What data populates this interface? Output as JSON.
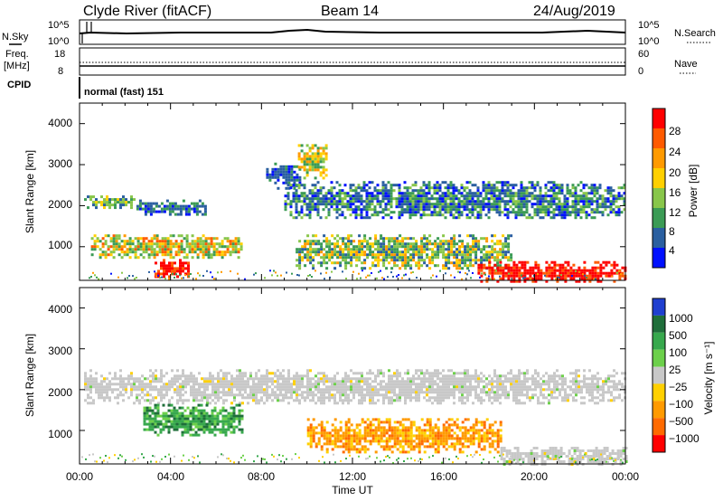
{
  "header": {
    "station": "Clyde River (fitACF)",
    "beam": "Beam 14",
    "date": "24/Aug/2019"
  },
  "noise_panel": {
    "left_label": "N.Sky",
    "right_label": "N.Search",
    "left_ticks": [
      "10^5",
      "10^0"
    ],
    "right_ticks": [
      "10^5",
      "10^0"
    ]
  },
  "freq_panel": {
    "left_label_1": "Freq.",
    "left_label_2": "[MHz]",
    "right_label": "Nave",
    "left_ticks": [
      "18",
      "8"
    ],
    "right_ticks": [
      "60",
      "0"
    ]
  },
  "cpid_panel": {
    "label": "CPID",
    "text": "normal (fast) 151"
  },
  "power_panel": {
    "ylabel": "Slant Range [km]",
    "yticks": [
      "4000",
      "3000",
      "2000",
      "1000"
    ],
    "colorbar_label": "Power [dB]",
    "colorbar_ticks": [
      "28",
      "24",
      "20",
      "16",
      "12",
      "8",
      "4"
    ]
  },
  "velocity_panel": {
    "ylabel": "Slant Range [km]",
    "yticks": [
      "4000",
      "3000",
      "2000",
      "1000"
    ],
    "colorbar_label": "Velocity [m s⁻¹]",
    "colorbar_ticks": [
      "1000",
      "500",
      "100",
      "25",
      "−25",
      "−100",
      "−500",
      "−1000"
    ]
  },
  "x_axis": {
    "label": "Time UT",
    "ticks": [
      "00:00",
      "04:00",
      "08:00",
      "12:00",
      "16:00",
      "20:00",
      "00:00"
    ]
  },
  "chart_data": {
    "type": "heatmap",
    "x_range_hours": [
      0,
      24
    ],
    "y_range_km": [
      180,
      4500
    ],
    "power_colors": [
      "#ff0000",
      "#ff5a00",
      "#ff9a00",
      "#ffd000",
      "#88c64a",
      "#3b9b55",
      "#2a5fa0",
      "#0010ff"
    ],
    "velocity_colors": [
      "#1f3fd0",
      "#1f6e3a",
      "#37a84d",
      "#6cd04a",
      "#c8c8c8",
      "#ffd000",
      "#ff9a00",
      "#ff6a00",
      "#ff0000"
    ],
    "power_echo_regions": [
      {
        "t0": 0.2,
        "t1": 2.4,
        "r0": 1950,
        "r1": 2250,
        "level": "12-16 dB"
      },
      {
        "t0": 2.5,
        "t1": 5.5,
        "r0": 1800,
        "r1": 2150,
        "level": "4-12 dB"
      },
      {
        "t0": 0.5,
        "t1": 7.1,
        "r0": 750,
        "r1": 1300,
        "level": "12-24 dB"
      },
      {
        "t0": 3.3,
        "t1": 4.8,
        "r0": 300,
        "r1": 700,
        "level": "20-28 dB"
      },
      {
        "t0": 8.2,
        "t1": 9.7,
        "r0": 2450,
        "r1": 3050,
        "level": "4-12 dB"
      },
      {
        "t0": 9.6,
        "t1": 10.8,
        "r0": 2700,
        "r1": 3500,
        "level": "12-20 dB"
      },
      {
        "t0": 9.0,
        "t1": 24.0,
        "r0": 1700,
        "r1": 2600,
        "level": "4-16 dB"
      },
      {
        "t0": 9.5,
        "t1": 19.0,
        "r0": 500,
        "r1": 1300,
        "level": "8-24 dB"
      },
      {
        "t0": 17.5,
        "t1": 24.0,
        "r0": 180,
        "r1": 650,
        "level": "20-28 dB"
      }
    ],
    "velocity_echo_regions": [
      {
        "t0": 0.2,
        "t1": 24.0,
        "r0": 1700,
        "r1": 2500,
        "level": "-25 to 25 m/s"
      },
      {
        "t0": 2.8,
        "t1": 7.1,
        "r0": 900,
        "r1": 1650,
        "level": "100 to 500 m/s"
      },
      {
        "t0": 10.0,
        "t1": 18.5,
        "r0": 500,
        "r1": 1300,
        "level": "-500 to -100 m/s"
      },
      {
        "t0": 18.5,
        "t1": 24.0,
        "r0": 180,
        "r1": 600,
        "level": "-25 to 25 m/s"
      }
    ]
  }
}
